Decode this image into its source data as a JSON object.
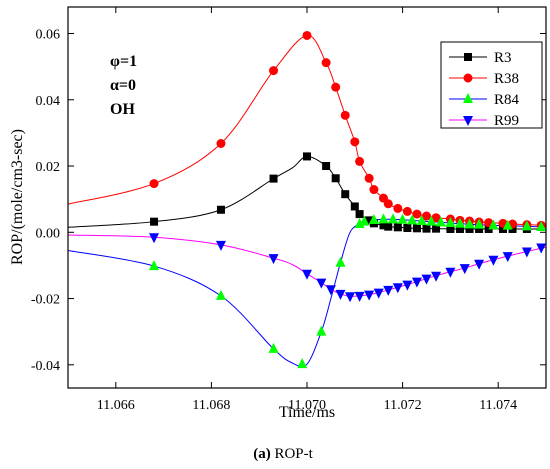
{
  "chart_data": {
    "type": "line",
    "xlabel": "Time/ms",
    "ylabel": "ROP/(mole/cm3-sec)",
    "xlim": [
      11.065,
      11.075
    ],
    "ylim": [
      -0.047,
      0.068
    ],
    "xticks": [
      "11.066",
      "11.068",
      "11.070",
      "11.072",
      "11.074"
    ],
    "xtick_values": [
      11.066,
      11.068,
      11.07,
      11.072,
      11.074
    ],
    "yticks": [
      "-0.04",
      "-0.02",
      "0.00",
      "0.02",
      "0.04",
      "0.06"
    ],
    "ytick_values": [
      -0.04,
      -0.02,
      0.0,
      0.02,
      0.04,
      0.06
    ],
    "annotations": [
      "φ=1",
      "α=0",
      "OH"
    ],
    "caption_label": "(a)",
    "caption_text": " ROP-t",
    "legend_position": "top-right",
    "series": [
      {
        "name": "R3",
        "color": "#000000",
        "marker": "square",
        "points": [
          [
            11.065,
            0.0015
          ],
          [
            11.0668,
            0.0032
          ],
          [
            11.0682,
            0.0068
          ],
          [
            11.0693,
            0.0162
          ],
          [
            11.0697,
            0.0195
          ],
          [
            11.07,
            0.0229
          ],
          [
            11.0704,
            0.02
          ],
          [
            11.0706,
            0.0163
          ],
          [
            11.0708,
            0.0115
          ],
          [
            11.071,
            0.0078
          ],
          [
            11.0711,
            0.0055
          ],
          [
            11.0713,
            0.0036
          ],
          [
            11.0714,
            0.0027
          ],
          [
            11.0716,
            0.0021
          ],
          [
            11.0717,
            0.0017
          ],
          [
            11.0719,
            0.0015
          ],
          [
            11.0721,
            0.0013
          ],
          [
            11.0723,
            0.0012
          ],
          [
            11.0725,
            0.0011
          ],
          [
            11.0727,
            0.0011
          ],
          [
            11.073,
            0.001
          ],
          [
            11.0732,
            0.001
          ],
          [
            11.0734,
            0.001
          ],
          [
            11.0736,
            0.001
          ],
          [
            11.0738,
            0.001
          ],
          [
            11.0741,
            0.001
          ],
          [
            11.0743,
            0.001
          ],
          [
            11.0746,
            0.001
          ],
          [
            11.075,
            0.001
          ]
        ],
        "marker_points": [
          [
            11.0668,
            0.0032
          ],
          [
            11.0682,
            0.0068
          ],
          [
            11.0693,
            0.0162
          ],
          [
            11.07,
            0.0229
          ],
          [
            11.0704,
            0.02
          ],
          [
            11.0706,
            0.0163
          ],
          [
            11.0708,
            0.0115
          ],
          [
            11.071,
            0.0078
          ],
          [
            11.0711,
            0.0055
          ],
          [
            11.0713,
            0.0036
          ],
          [
            11.0714,
            0.0027
          ],
          [
            11.0716,
            0.0021
          ],
          [
            11.0717,
            0.0017
          ],
          [
            11.0719,
            0.0015
          ],
          [
            11.0721,
            0.0013
          ],
          [
            11.0723,
            0.0012
          ],
          [
            11.0725,
            0.0011
          ],
          [
            11.0727,
            0.0011
          ],
          [
            11.073,
            0.001
          ],
          [
            11.0732,
            0.001
          ],
          [
            11.0734,
            0.001
          ],
          [
            11.0736,
            0.001
          ],
          [
            11.0738,
            0.001
          ],
          [
            11.0741,
            0.001
          ],
          [
            11.0743,
            0.001
          ],
          [
            11.0746,
            0.001
          ]
        ]
      },
      {
        "name": "R38",
        "color": "#ff0000",
        "marker": "circle",
        "points": [
          [
            11.065,
            0.0085
          ],
          [
            11.0668,
            0.0147
          ],
          [
            11.0682,
            0.0268
          ],
          [
            11.0693,
            0.0488
          ],
          [
            11.07,
            0.0594
          ],
          [
            11.0704,
            0.0512
          ],
          [
            11.0706,
            0.0438
          ],
          [
            11.0708,
            0.0353
          ],
          [
            11.071,
            0.0273
          ],
          [
            11.0711,
            0.0214
          ],
          [
            11.0713,
            0.0163
          ],
          [
            11.0714,
            0.0129
          ],
          [
            11.0716,
            0.0103
          ],
          [
            11.0717,
            0.0086
          ],
          [
            11.0719,
            0.0072
          ],
          [
            11.0721,
            0.0063
          ],
          [
            11.0723,
            0.0055
          ],
          [
            11.0725,
            0.0049
          ],
          [
            11.0727,
            0.0044
          ],
          [
            11.073,
            0.004
          ],
          [
            11.0732,
            0.0036
          ],
          [
            11.0734,
            0.0034
          ],
          [
            11.0736,
            0.0031
          ],
          [
            11.0738,
            0.0029
          ],
          [
            11.0741,
            0.0027
          ],
          [
            11.0743,
            0.0025
          ],
          [
            11.0746,
            0.0023
          ],
          [
            11.0749,
            0.0021
          ],
          [
            11.075,
            0.0019
          ]
        ],
        "marker_points": [
          [
            11.0668,
            0.0147
          ],
          [
            11.0682,
            0.0268
          ],
          [
            11.0693,
            0.0488
          ],
          [
            11.07,
            0.0594
          ],
          [
            11.0704,
            0.0512
          ],
          [
            11.0706,
            0.0438
          ],
          [
            11.0708,
            0.0353
          ],
          [
            11.071,
            0.0273
          ],
          [
            11.0711,
            0.0214
          ],
          [
            11.0713,
            0.0163
          ],
          [
            11.0714,
            0.0129
          ],
          [
            11.0716,
            0.0103
          ],
          [
            11.0717,
            0.0086
          ],
          [
            11.0719,
            0.0072
          ],
          [
            11.0721,
            0.0063
          ],
          [
            11.0723,
            0.0055
          ],
          [
            11.0725,
            0.0049
          ],
          [
            11.0727,
            0.0044
          ],
          [
            11.073,
            0.004
          ],
          [
            11.0732,
            0.0036
          ],
          [
            11.0734,
            0.0034
          ],
          [
            11.0736,
            0.0031
          ],
          [
            11.0738,
            0.0029
          ],
          [
            11.0741,
            0.0027
          ],
          [
            11.0743,
            0.0025
          ],
          [
            11.0746,
            0.0023
          ],
          [
            11.0749,
            0.0021
          ]
        ]
      },
      {
        "name": "R84",
        "color": "#0000ff",
        "marker": "triangle-up",
        "marker_fill": "#00ff00",
        "points": [
          [
            11.065,
            -0.0055
          ],
          [
            11.0668,
            -0.0102
          ],
          [
            11.0682,
            -0.0192
          ],
          [
            11.0693,
            -0.0352
          ],
          [
            11.0697,
            -0.0395
          ],
          [
            11.07,
            -0.0398
          ],
          [
            11.0703,
            -0.03
          ],
          [
            11.0705,
            -0.02
          ],
          [
            11.0707,
            -0.0092
          ],
          [
            11.0709,
            0.0
          ],
          [
            11.0711,
            0.0025
          ],
          [
            11.0712,
            0.0032
          ],
          [
            11.0714,
            0.0037
          ],
          [
            11.0716,
            0.0039
          ],
          [
            11.0718,
            0.0039
          ],
          [
            11.072,
            0.0038
          ],
          [
            11.0722,
            0.0036
          ],
          [
            11.0724,
            0.0034
          ],
          [
            11.0726,
            0.0032
          ],
          [
            11.0728,
            0.003
          ],
          [
            11.073,
            0.0028
          ],
          [
            11.0732,
            0.0026
          ],
          [
            11.0734,
            0.0024
          ],
          [
            11.0736,
            0.0023
          ],
          [
            11.0739,
            0.0021
          ],
          [
            11.0742,
            0.002
          ],
          [
            11.0746,
            0.0018
          ],
          [
            11.075,
            0.0016
          ]
        ],
        "marker_points": [
          [
            11.0668,
            -0.0102
          ],
          [
            11.0682,
            -0.0192
          ],
          [
            11.0693,
            -0.0352
          ],
          [
            11.0699,
            -0.0398
          ],
          [
            11.0703,
            -0.03
          ],
          [
            11.0707,
            -0.0092
          ],
          [
            11.0711,
            0.0025
          ],
          [
            11.0712,
            0.0032
          ],
          [
            11.0714,
            0.0037
          ],
          [
            11.0716,
            0.0039
          ],
          [
            11.0718,
            0.0039
          ],
          [
            11.072,
            0.0038
          ],
          [
            11.0722,
            0.0036
          ],
          [
            11.0724,
            0.0034
          ],
          [
            11.0726,
            0.0032
          ],
          [
            11.0728,
            0.003
          ],
          [
            11.073,
            0.0028
          ],
          [
            11.0732,
            0.0026
          ],
          [
            11.0734,
            0.0024
          ],
          [
            11.0736,
            0.0023
          ],
          [
            11.0739,
            0.0021
          ],
          [
            11.0742,
            0.002
          ],
          [
            11.0746,
            0.0018
          ],
          [
            11.0749,
            0.0016
          ]
        ]
      },
      {
        "name": "R99",
        "color": "#ff00ff",
        "marker": "triangle-down",
        "marker_fill": "#0000ff",
        "points": [
          [
            11.065,
            -0.0008
          ],
          [
            11.0668,
            -0.0015
          ],
          [
            11.0682,
            -0.0038
          ],
          [
            11.0693,
            -0.0078
          ],
          [
            11.0697,
            -0.0098
          ],
          [
            11.07,
            -0.0125
          ],
          [
            11.0703,
            -0.0152
          ],
          [
            11.0705,
            -0.0172
          ],
          [
            11.0707,
            -0.0186
          ],
          [
            11.0709,
            -0.0193
          ],
          [
            11.0711,
            -0.0192
          ],
          [
            11.0713,
            -0.0188
          ],
          [
            11.0715,
            -0.0182
          ],
          [
            11.0717,
            -0.0174
          ],
          [
            11.0719,
            -0.0166
          ],
          [
            11.0721,
            -0.0158
          ],
          [
            11.0723,
            -0.0149
          ],
          [
            11.0725,
            -0.014
          ],
          [
            11.0727,
            -0.0131
          ],
          [
            11.073,
            -0.0119
          ],
          [
            11.0733,
            -0.0108
          ],
          [
            11.0736,
            -0.0095
          ],
          [
            11.0739,
            -0.0083
          ],
          [
            11.0742,
            -0.0072
          ],
          [
            11.0746,
            -0.0058
          ],
          [
            11.075,
            -0.0045
          ]
        ],
        "marker_points": [
          [
            11.0668,
            -0.0015
          ],
          [
            11.0682,
            -0.0038
          ],
          [
            11.0693,
            -0.0078
          ],
          [
            11.07,
            -0.0125
          ],
          [
            11.0703,
            -0.0152
          ],
          [
            11.0705,
            -0.0172
          ],
          [
            11.0707,
            -0.0186
          ],
          [
            11.0709,
            -0.0193
          ],
          [
            11.0711,
            -0.0192
          ],
          [
            11.0713,
            -0.0188
          ],
          [
            11.0715,
            -0.0182
          ],
          [
            11.0717,
            -0.0174
          ],
          [
            11.0719,
            -0.0166
          ],
          [
            11.0721,
            -0.0158
          ],
          [
            11.0723,
            -0.0149
          ],
          [
            11.0725,
            -0.014
          ],
          [
            11.0727,
            -0.0131
          ],
          [
            11.073,
            -0.0119
          ],
          [
            11.0733,
            -0.0108
          ],
          [
            11.0736,
            -0.0095
          ],
          [
            11.0739,
            -0.0083
          ],
          [
            11.0742,
            -0.0072
          ],
          [
            11.0746,
            -0.0058
          ],
          [
            11.0749,
            -0.0046
          ]
        ]
      }
    ]
  }
}
